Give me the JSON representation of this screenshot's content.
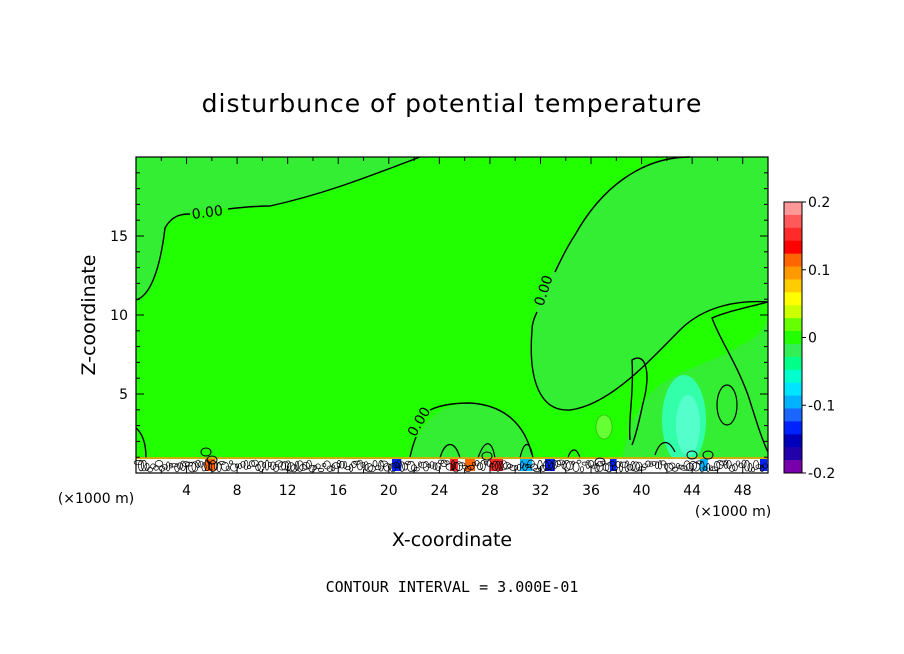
{
  "chart_data": {
    "type": "heatmap",
    "title": "disturbunce of potential temperature",
    "xlabel": "X-coordinate",
    "ylabel": "Z-coordinate",
    "x_unit": "(×1000 m)",
    "z_unit": "(×1000 m)",
    "xlim": [
      0,
      50
    ],
    "ylim": [
      0,
      20
    ],
    "x_ticks": [
      4,
      8,
      12,
      16,
      20,
      24,
      28,
      32,
      36,
      40,
      44,
      48
    ],
    "y_ticks": [
      5,
      10,
      15
    ],
    "colorbar": {
      "vmin": -0.2,
      "vmax": 0.2,
      "ticks": [
        "0.2",
        "0.1",
        "0",
        "-0.1",
        "-0.2"
      ],
      "colors": [
        "#ff9999",
        "#ff5959",
        "#ff2a2a",
        "#ff0000",
        "#ff6600",
        "#ff9900",
        "#ffcc00",
        "#ffff00",
        "#ccff00",
        "#66ff00",
        "#22ff00",
        "#33ee55",
        "#00ff88",
        "#00ffcc",
        "#00e5ff",
        "#00b2ff",
        "#1a66ff",
        "#0022ff",
        "#0000bb",
        "#2200aa",
        "#7700aa"
      ]
    },
    "contour_label": "0.00",
    "contour_labels_shown": [
      "0.00",
      "0.00",
      "0.00"
    ],
    "contour_interval_text": "CONTOUR INTERVAL = 3.000E-01",
    "background_value": 0.01
  }
}
